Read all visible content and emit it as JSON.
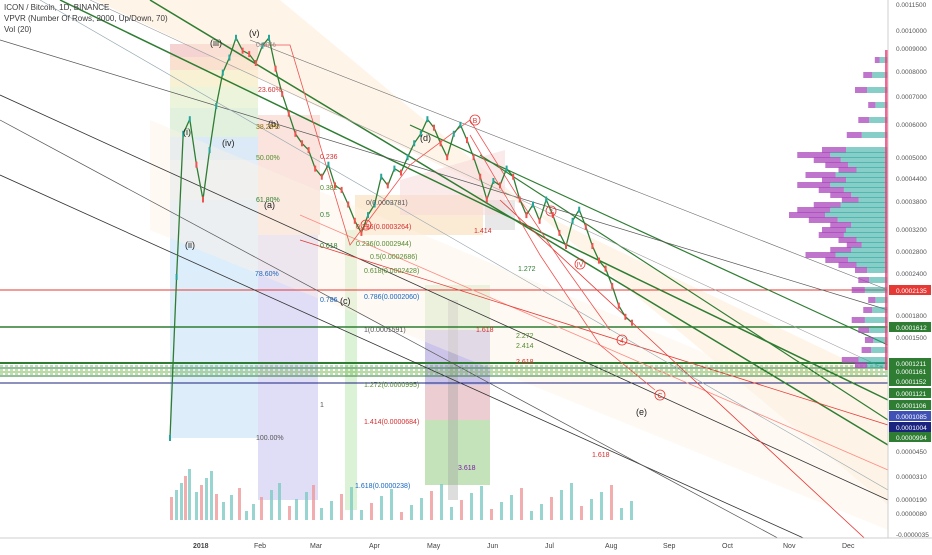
{
  "header": {
    "symbol_line": "ICON / Bitcoin, 1D, BINANCE",
    "vpvr_line": "VPVR (Number Of Rows, 2000, Up/Down, 70)",
    "vol_line": "Vol (20)"
  },
  "chart_data": {
    "type": "line",
    "title": "ICON / Bitcoin, 1D, BINANCE",
    "xlabel": "",
    "ylabel": "",
    "x_ticks": [
      "2018",
      "Feb",
      "Mar",
      "Apr",
      "May",
      "Jun",
      "Jul",
      "Aug",
      "Sep",
      "Oct",
      "Nov",
      "Dec"
    ],
    "y_ticks": [
      "0.0011500",
      "0.0010000",
      "0.0009000",
      "0.0008000",
      "0.0007000",
      "0.0006000",
      "0.0005000",
      "0.0004400",
      "0.0003800",
      "0.0003200",
      "0.0002800",
      "0.0002400",
      "0.0001800",
      "0.0001500",
      "0.0000450",
      "0.0000310",
      "0.0000190",
      "0.0000080",
      "-0.0000035"
    ],
    "price_labels": [
      {
        "text": "0.0002135",
        "color": "#e53935"
      },
      {
        "text": "0.0001612",
        "color": "#2e7d32"
      },
      {
        "text": "0.0001211",
        "color": "#2e7d32"
      },
      {
        "text": "0.0001161",
        "color": "#2e7d32"
      },
      {
        "text": "0.0001152",
        "color": "#2e7d32"
      },
      {
        "text": "0.0001121",
        "color": "#2e7d32"
      },
      {
        "text": "0.0001106",
        "color": "#2e7d32"
      },
      {
        "text": "0.0001085",
        "color": "#3f51b5"
      },
      {
        "text": "0.0001004",
        "color": "#1a237e"
      },
      {
        "text": "0.0000994",
        "color": "#2e7d32"
      }
    ],
    "series": [
      {
        "values": [
          5e-05,
          0.00016,
          0.00045,
          0.0005,
          0.00036,
          0.00028,
          0.0004,
          0.00055,
          0.0007,
          0.00078,
          0.0009,
          0.00082,
          0.0008,
          0.00075,
          0.00085,
          0.0009,
          0.00072,
          0.0006,
          0.00052,
          0.00045,
          0.00042,
          0.0004,
          0.00035,
          0.00033,
          0.00036,
          0.00031,
          0.0003,
          0.00027,
          0.00024,
          0.00022,
          0.00025,
          0.00027,
          0.00033,
          0.00031,
          0.00035,
          0.00034,
          0.00038,
          0.00042,
          0.00045,
          0.0005,
          0.00047,
          0.00042,
          0.00038,
          0.00045,
          0.00048,
          0.00043,
          0.00038,
          0.00033,
          0.00028,
          0.00032,
          0.00031,
          0.00035,
          0.00033,
          0.00028,
          0.00025,
          0.00027,
          0.00024,
          0.00028,
          0.00025,
          0.00022,
          0.0002,
          0.00024,
          0.00026,
          0.00023,
          0.0002,
          0.00018,
          0.00017,
          0.00015,
          0.00013,
          0.00012,
          0.000115
        ]
      }
    ],
    "wave_labels": [
      "(i)",
      "(ii)",
      "(iii)",
      "(iv)",
      "(v)",
      "(a)",
      "(b)",
      "(c)",
      "(d)",
      "(e)"
    ],
    "fib_labels": [
      "0.00%",
      "23.60%",
      "38.20%",
      "50.00%",
      "61.80%",
      "78.60%",
      "100.00%",
      "0.236",
      "0.382",
      "0.5",
      "0.618",
      "0.786",
      "1",
      "0.236(0.0003264)",
      "0.236(0.0002944)",
      "0.5(0.0002686)",
      "0.618(0.0002428)",
      "0.786(0.0002060)",
      "1(0.0001591)",
      "1.272(0.0000995)",
      "1.414(0.0000684)",
      "1.618(0.0000238)",
      "0(0.0003781)",
      "3.618",
      "1.414",
      "1.618",
      "2.272",
      "2.414",
      "2.618",
      "1.618",
      "1.272"
    ],
    "grid": false,
    "log_scale": true
  }
}
